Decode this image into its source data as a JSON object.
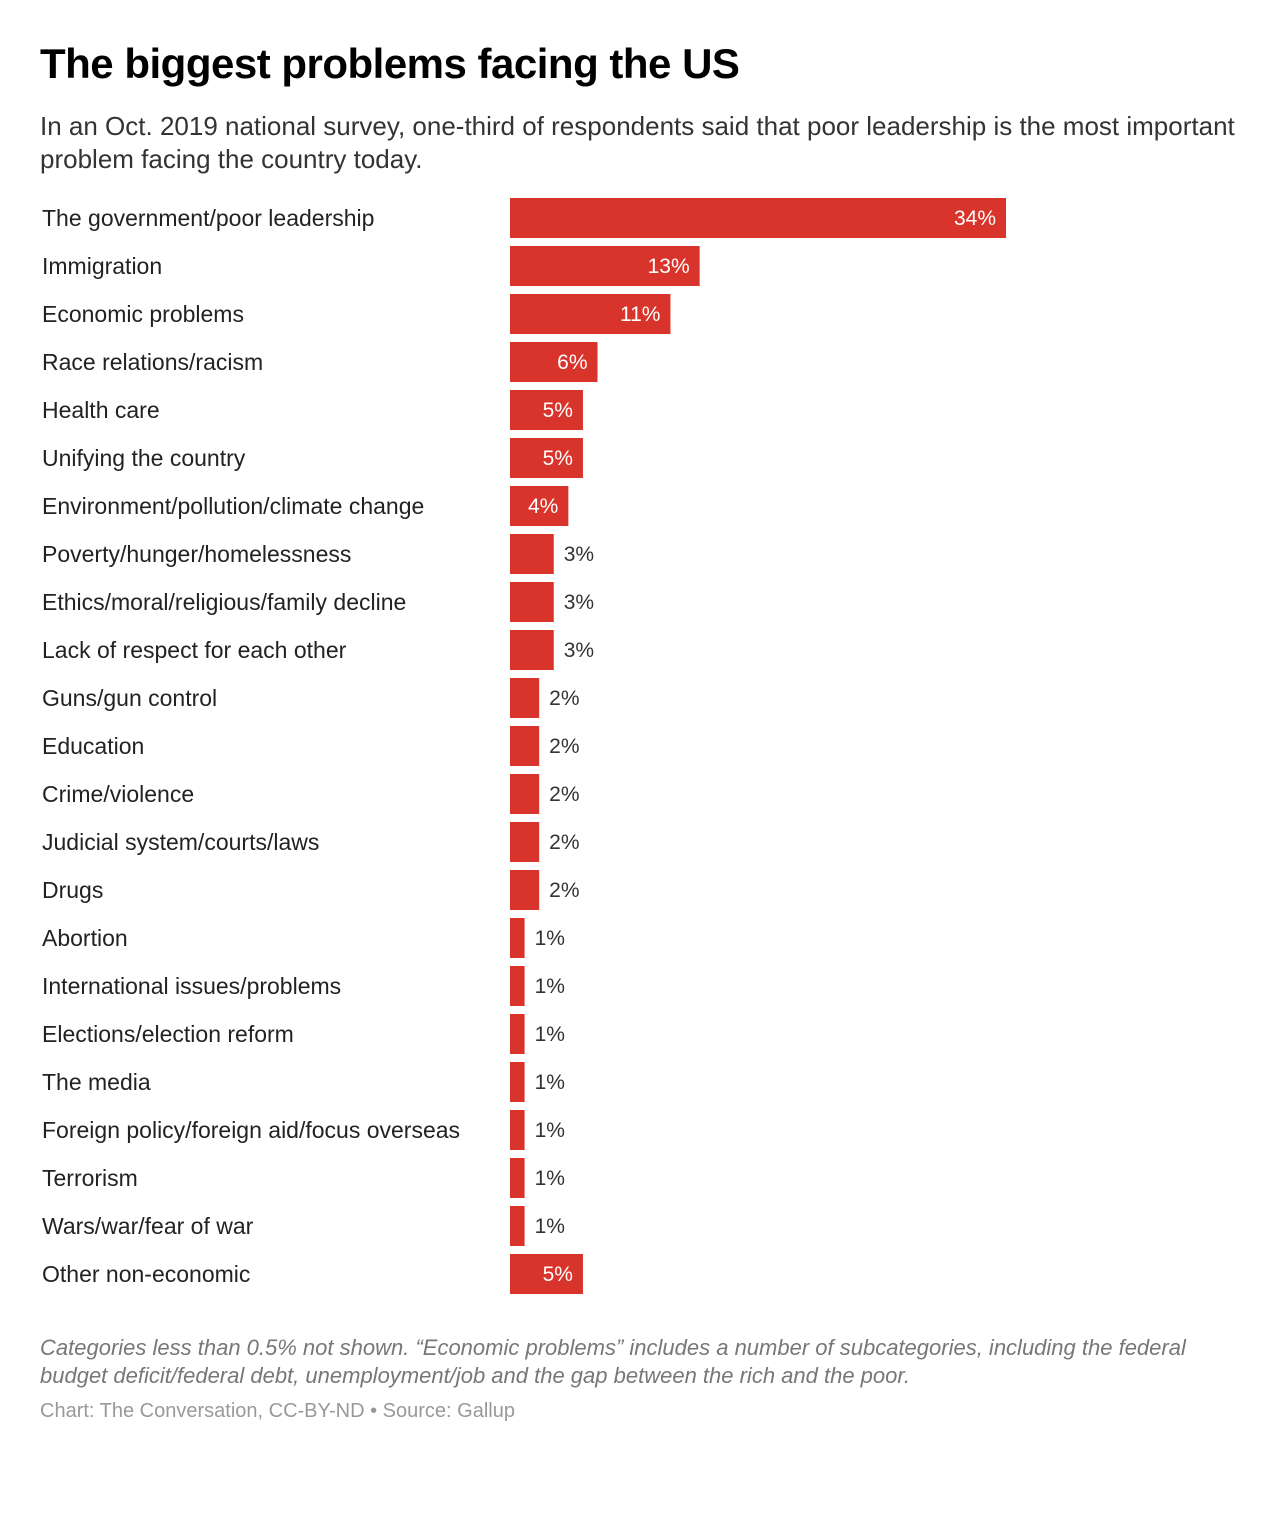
{
  "header": {
    "title": "The biggest problems facing the US",
    "subtitle": "In an Oct. 2019 national survey, one-third of respondents said that poor leadership is the most important problem facing the country today."
  },
  "chart_data": {
    "type": "bar",
    "orientation": "horizontal",
    "categories": [
      "The government/poor leadership",
      "Immigration",
      "Economic problems",
      "Race relations/racism",
      "Health care",
      "Unifying the country",
      "Environment/pollution/climate change",
      "Poverty/hunger/homelessness",
      "Ethics/moral/religious/family decline",
      "Lack of respect for each other",
      "Guns/gun control",
      "Education",
      "Crime/violence",
      "Judicial system/courts/laws",
      "Drugs",
      "Abortion",
      "International issues/problems",
      "Elections/election reform",
      "The media",
      "Foreign policy/foreign aid/focus overseas",
      "Terrorism",
      "Wars/war/fear of war",
      "Other non-economic"
    ],
    "values": [
      34,
      13,
      11,
      6,
      5,
      5,
      4,
      3,
      3,
      3,
      2,
      2,
      2,
      2,
      2,
      1,
      1,
      1,
      1,
      1,
      1,
      1,
      5
    ],
    "value_suffix": "%",
    "xlim": [
      0,
      34
    ],
    "grid": false,
    "legend": "none",
    "bar_color": "#d9342b"
  },
  "footer": {
    "notes": "Categories less than 0.5% not shown. “Economic problems” includes a number of subcategories, including the federal budget deficit/federal debt, unemployment/job and the gap between the rich and the poor.",
    "credit": "Chart: The Conversation, CC-BY-ND • Source: Gallup"
  }
}
